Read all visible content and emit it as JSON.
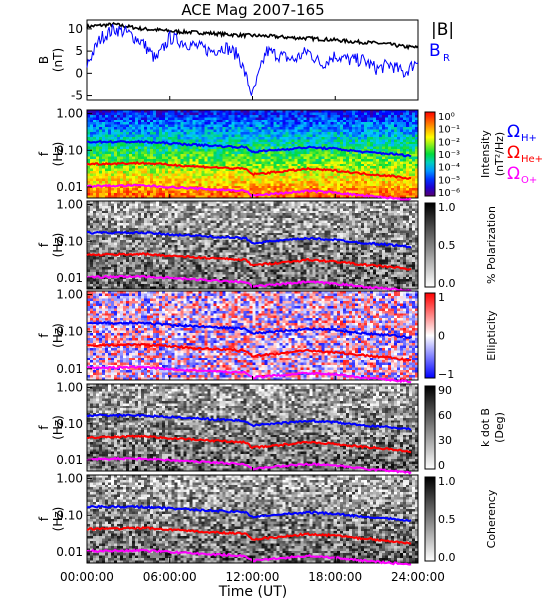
{
  "chart_data": {
    "type": "line",
    "title": "ACE Mag 2007-165",
    "xlabel": "Time (UT)",
    "x_ticks": [
      "00:00:00",
      "06:00:00",
      "12:00:00",
      "18:00:00",
      "24:00:00"
    ],
    "xlim_hours": [
      0,
      24
    ],
    "panels": [
      {
        "id": "B",
        "type": "line",
        "ylabel": "B",
        "yunit": "(nT)",
        "ylim": [
          -6,
          12
        ],
        "yticks": [
          "10",
          "5",
          "0",
          "-5"
        ],
        "series": [
          {
            "name": "|B|",
            "color": "#000000",
            "x": [
              0,
              1,
              2,
              3,
              4,
              5,
              6,
              7,
              8,
              9,
              10,
              11,
              12,
              13,
              14,
              15,
              16,
              17,
              18,
              19,
              20,
              21,
              22,
              23,
              24
            ],
            "values": [
              10.5,
              10.8,
              11,
              10.5,
              10,
              9.8,
              9.5,
              9.3,
              9.2,
              9,
              8.8,
              8.6,
              8.5,
              8.4,
              8.2,
              8,
              7.9,
              7.7,
              7.5,
              7.2,
              7,
              6.8,
              6.5,
              6,
              5.8
            ]
          },
          {
            "name": "B_R",
            "color": "#0000ff",
            "x": [
              0,
              1,
              2,
              3,
              4,
              5,
              6,
              7,
              8,
              9,
              10,
              11,
              12,
              13,
              14,
              15,
              16,
              17,
              18,
              19,
              20,
              21,
              22,
              23,
              24
            ],
            "values": [
              2,
              8,
              10,
              9,
              7,
              3,
              8,
              7,
              6,
              5,
              6,
              4,
              -5,
              5,
              4,
              3,
              5,
              2,
              4,
              3,
              3,
              1,
              2,
              0,
              3
            ]
          }
        ]
      },
      {
        "id": "intensity",
        "type": "heatmap",
        "ylabel": "f",
        "yunit": "(Hz)",
        "yticks": [
          "1.00",
          "0.10",
          "0.01"
        ],
        "colorbar_label": "Intensity",
        "colorbar_unit": "(nT²/Hz)",
        "colorbar_ticks": [
          "10⁰",
          "10⁻¹",
          "10⁻²",
          "10⁻³",
          "10⁻⁴",
          "10⁻⁵",
          "10⁻⁶"
        ],
        "colorbar_scale": "rainbow"
      },
      {
        "id": "polarization",
        "type": "heatmap",
        "ylabel": "f",
        "yunit": "(Hz)",
        "yticks": [
          "1.00",
          "0.10",
          "0.01"
        ],
        "colorbar_label": "% Polarization",
        "colorbar_ticks": [
          "1.0",
          "0.5",
          "0.0"
        ],
        "colorbar_scale": "gray"
      },
      {
        "id": "ellipticity",
        "type": "heatmap",
        "ylabel": "f",
        "yunit": "(Hz)",
        "yticks": [
          "1.00",
          "0.10",
          "0.01"
        ],
        "colorbar_label": "Ellipticity",
        "colorbar_ticks": [
          "1",
          "0",
          "−1"
        ],
        "colorbar_scale": "bwr"
      },
      {
        "id": "kdotb",
        "type": "heatmap",
        "ylabel": "f",
        "yunit": "(Hz)",
        "yticks": [
          "1.00",
          "0.10",
          "0.01"
        ],
        "colorbar_label": "k dot B",
        "colorbar_unit": "(Deg)",
        "colorbar_ticks": [
          "90",
          "60",
          "30",
          "0"
        ],
        "colorbar_scale": "gray"
      },
      {
        "id": "coherency",
        "type": "heatmap",
        "ylabel": "f",
        "yunit": "(Hz)",
        "yticks": [
          "1.00",
          "0.10",
          "0.01"
        ],
        "colorbar_label": "Coherency",
        "colorbar_ticks": [
          "1.0",
          "0.5",
          "0.0"
        ],
        "colorbar_scale": "gray"
      }
    ],
    "gyrofrequency_lines": [
      {
        "name": "ΩH+",
        "color": "#0000ff",
        "x": [
          0,
          4,
          8,
          11.5,
          12,
          16,
          18,
          20,
          22,
          23.5
        ],
        "hz": [
          0.17,
          0.17,
          0.14,
          0.12,
          0.09,
          0.12,
          0.11,
          0.09,
          0.08,
          0.07
        ]
      },
      {
        "name": "ΩHe+",
        "color": "#ff0000",
        "x": [
          0,
          4,
          8,
          11.5,
          12,
          16,
          18,
          20,
          22,
          23.5
        ],
        "hz": [
          0.042,
          0.045,
          0.036,
          0.031,
          0.022,
          0.031,
          0.028,
          0.023,
          0.02,
          0.017
        ]
      },
      {
        "name": "ΩO+",
        "color": "#ff00ff",
        "x": [
          0,
          4,
          8,
          11.5,
          12,
          16,
          18,
          20,
          22,
          23.5
        ],
        "hz": [
          0.0105,
          0.011,
          0.009,
          0.0078,
          0.0058,
          0.0078,
          0.007,
          0.0058,
          0.005,
          0.0045
        ]
      }
    ],
    "legend_top": [
      "|B|",
      "B_R"
    ],
    "legend_ion": [
      "ΩH+",
      "ΩHe+",
      "ΩO+"
    ]
  }
}
